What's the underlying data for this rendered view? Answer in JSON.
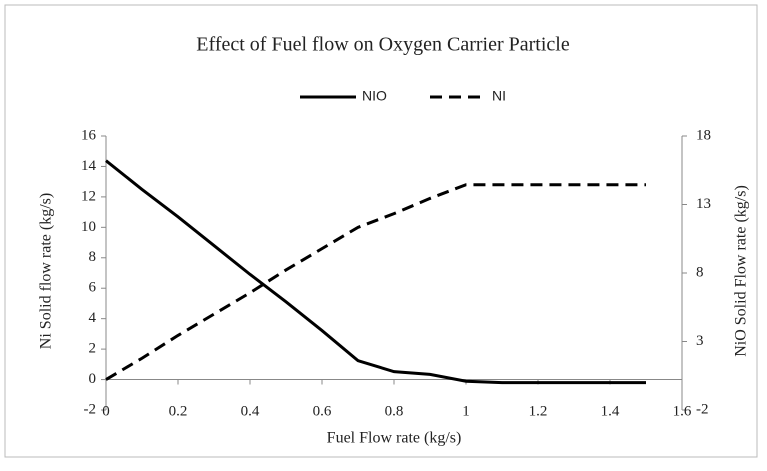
{
  "chart_data": {
    "type": "line",
    "title": "Effect of Fuel flow on Oxygen Carrier Particle",
    "x_label": "Fuel Flow rate (kg/s)",
    "y_label": "Ni Solid flow rate (kg/s)",
    "y2_label": "NiO Solid Flow rate (kg/s)",
    "x": [
      0,
      0.1,
      0.2,
      0.3,
      0.4,
      0.5,
      0.6,
      0.7,
      0.8,
      0.9,
      1.0,
      1.1,
      1.2,
      1.3,
      1.4,
      1.5
    ],
    "series": [
      {
        "name": "NIO",
        "color": "#000000",
        "dash": "solid",
        "axis": "y2",
        "values": [
          16.2,
          14.1,
          12.1,
          10.0,
          7.9,
          5.9,
          3.8,
          1.6,
          0.8,
          0.6,
          0.1,
          0,
          0,
          0,
          0,
          0
        ]
      },
      {
        "name": "NI",
        "color": "#000000",
        "dash": "dashed",
        "axis": "y",
        "values": [
          0,
          1.4,
          2.9,
          4.3,
          5.7,
          7.2,
          8.6,
          10.0,
          10.9,
          11.9,
          12.8,
          12.8,
          12.8,
          12.8,
          12.8,
          12.8
        ]
      }
    ],
    "xlim": [
      0,
      1.6
    ],
    "xticks": [
      0,
      0.2,
      0.4,
      0.6,
      0.8,
      1,
      1.2,
      1.4,
      1.6
    ],
    "ylim": [
      -2,
      16
    ],
    "yticks": [
      -2,
      0,
      2,
      4,
      6,
      8,
      10,
      12,
      14,
      16
    ],
    "y2lim": [
      -2,
      18
    ],
    "y2ticks": [
      -2,
      3,
      8,
      13,
      18
    ],
    "grid": false,
    "legend": "top"
  }
}
